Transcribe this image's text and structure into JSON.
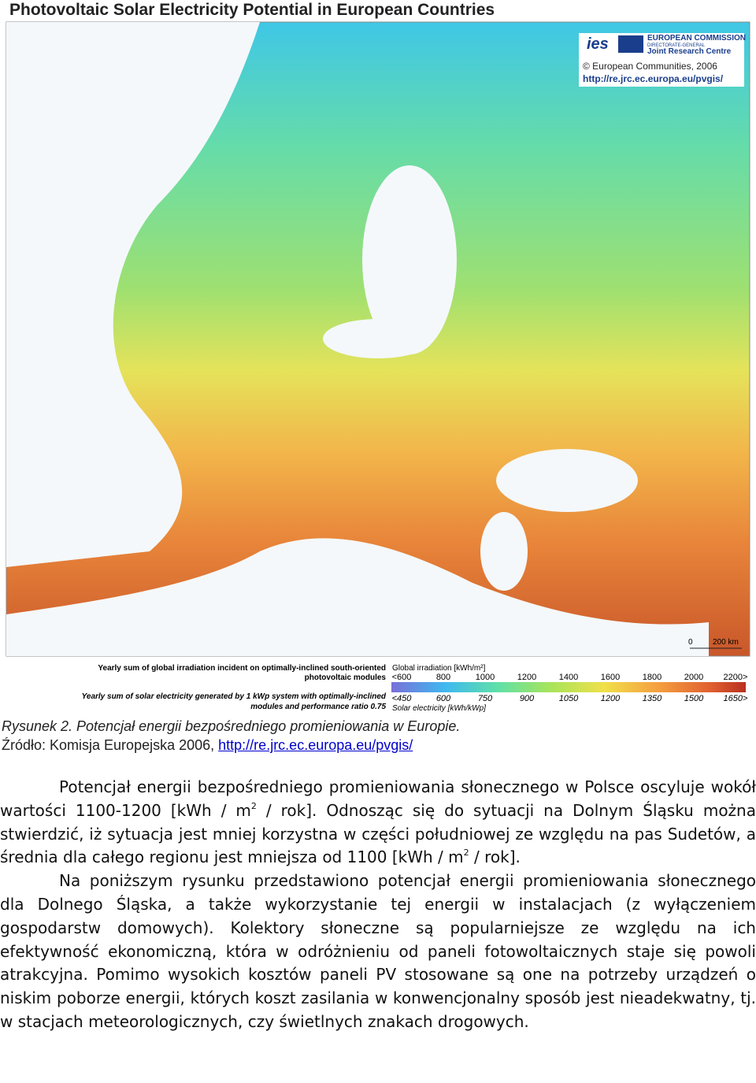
{
  "map": {
    "title": "Photovoltaic Solar Electricity Potential in European Countries",
    "logo": {
      "ies": "ies",
      "commission": "EUROPEAN COMMISSION",
      "directorate": "DIRECTORATE-GENERAL",
      "jrc": "Joint Research Centre",
      "copyright": "© European Communities, 2006",
      "url": "http://re.jrc.ec.europa.eu/pvgis/"
    },
    "scale": [
      "0",
      "200 km"
    ],
    "legend": {
      "irradiation_desc": [
        "Yearly sum of global irradiation incident on optimally-inclined south-oriented",
        "photovoltaic modules"
      ],
      "electricity_desc": [
        "Yearly sum of solar electricity generated by 1 kWp system with optimally-inclined",
        "modules and performance ratio 0.75"
      ],
      "irradiation_title": "Global irradiation [kWh/m²]",
      "irradiation_labels": [
        "<600",
        "800",
        "1000",
        "1200",
        "1400",
        "1600",
        "1800",
        "2000",
        "2200>"
      ],
      "electricity_labels": [
        "<450",
        "600",
        "750",
        "900",
        "1050",
        "1200",
        "1350",
        "1500",
        "1650>"
      ],
      "electricity_title": "Solar electricity [kWh/kWp]"
    }
  },
  "caption": {
    "line1": "Rysunek 2. Potencjał energii bezpośredniego promieniowania w Europie.",
    "source": "Źródło: Komisja Europejska 2006, ",
    "link": "http://re.jrc.ec.europa.eu/pvgis/"
  },
  "paragraphs": [
    [
      "Potencjał energii bezpośredniego promieniowania słonecznego w Polsce oscyluje wokół wartości 1100-1200 [kWh / m",
      "2",
      " / rok]. Odnosząc się do sytuacji na Dolnym Śląsku można stwierdzić, iż sytuacja jest mniej korzystna w części południowej ze względu na pas Sudetów, a średnia dla całego regionu jest mniejsza od 1100 [kWh / m",
      "2",
      " / rok]."
    ],
    [
      "Na poniższym rysunku przedstawiono potencjał energii promieniowania słonecznego dla Dolnego Śląska, a także wykorzystanie tej energii w instalacjach (z wyłączeniem gospodarstw domowych). Kolektory słoneczne są popularniejsze ze względu na ich efektywność ekonomiczną, która w odróżnieniu od paneli fotowoltaicznych staje się powoli atrakcyjna. Pomimo wysokich kosztów paneli PV stosowane są one na potrzeby urządzeń o niskim poborze energii, których koszt zasilania w konwencjonalny sposób jest nieadekwatny, tj. w stacjach meteorologicznych, czy świetlnych znakach drogowych."
    ]
  ]
}
